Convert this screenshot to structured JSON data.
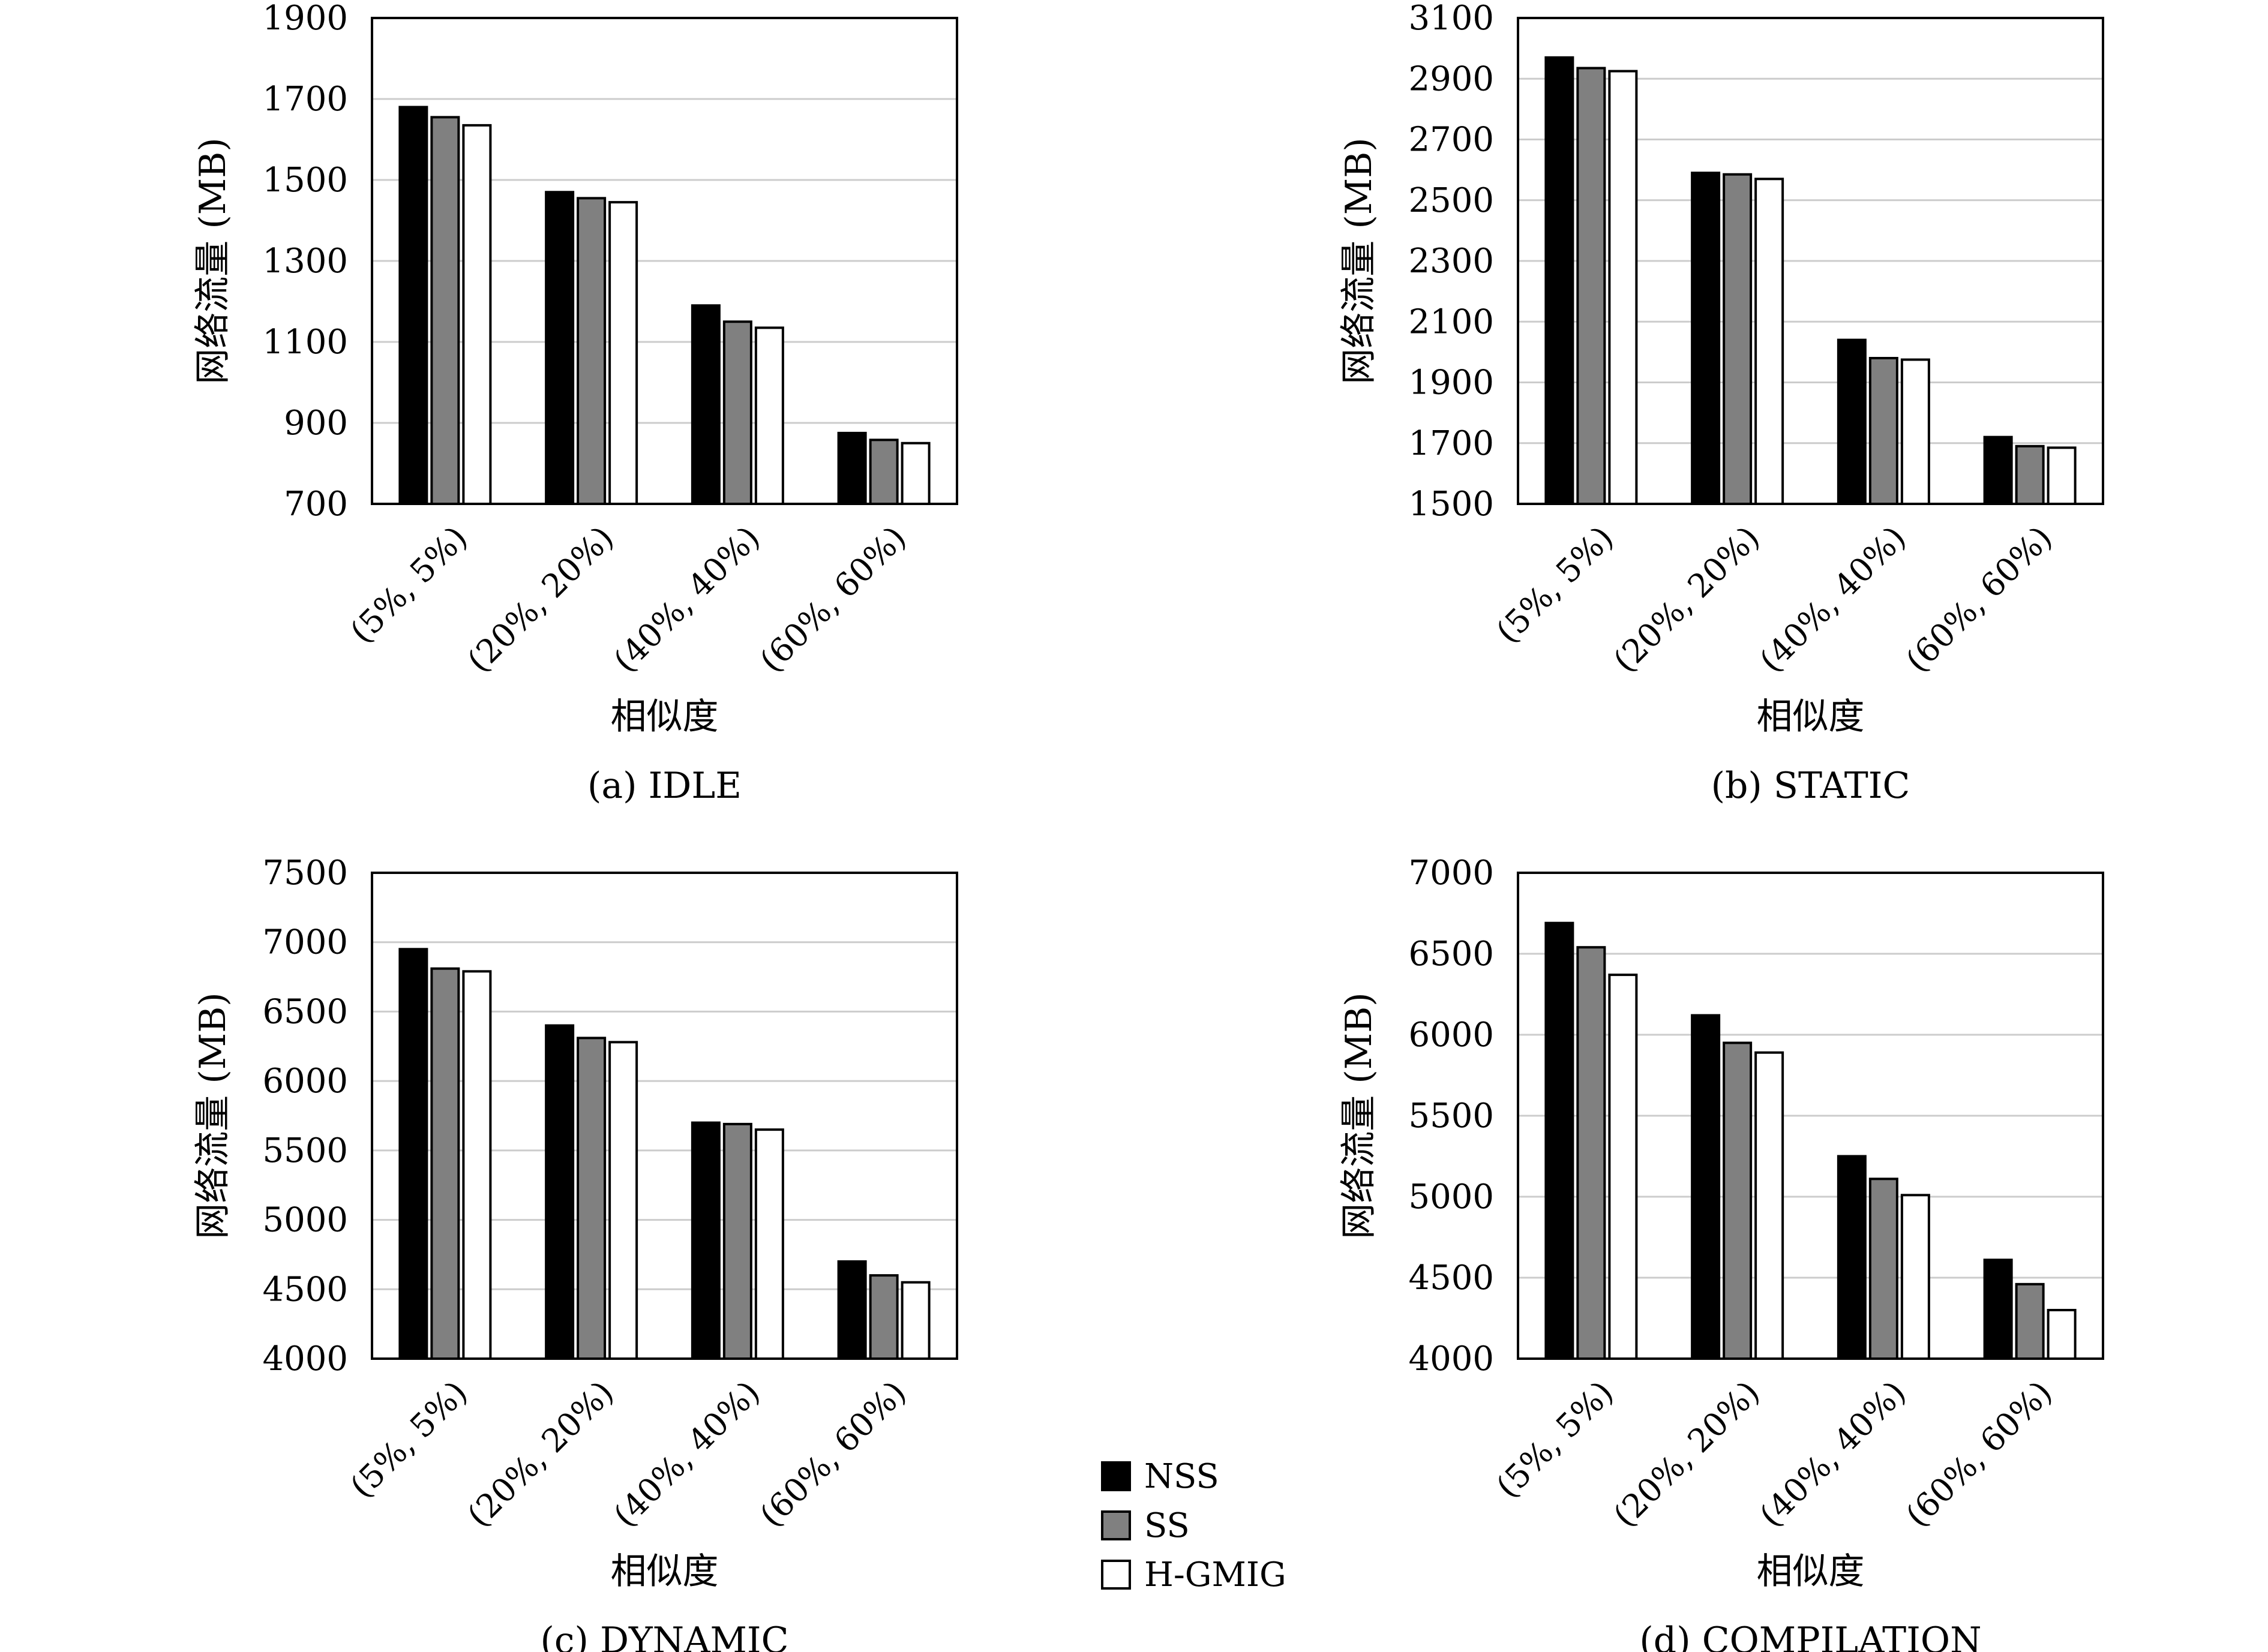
{
  "legend": {
    "items": [
      {
        "name": "NSS",
        "color": "#000000"
      },
      {
        "name": "SS",
        "color": "#808080"
      },
      {
        "name": "H-GMIG",
        "color": "#ffffff"
      }
    ]
  },
  "chart_data": [
    {
      "type": "bar",
      "caption": "(a) IDLE",
      "xlabel": "相似度",
      "ylabel": "网络流量 (MB)",
      "categories": [
        "(5%, 5%)",
        "(20%, 20%)",
        "(40%, 40%)",
        "(60%, 60%)"
      ],
      "ylim": [
        700,
        1900
      ],
      "yticks": [
        700,
        900,
        1100,
        1300,
        1500,
        1700,
        1900
      ],
      "grid": true,
      "series": [
        {
          "name": "NSS",
          "values": [
            1680,
            1470,
            1190,
            875
          ]
        },
        {
          "name": "SS",
          "values": [
            1655,
            1455,
            1150,
            858
          ]
        },
        {
          "name": "H-GMIG",
          "values": [
            1635,
            1445,
            1135,
            850
          ]
        }
      ]
    },
    {
      "type": "bar",
      "caption": "(b) STATIC",
      "xlabel": "相似度",
      "ylabel": "网络流量 (MB)",
      "categories": [
        "(5%, 5%)",
        "(20%, 20%)",
        "(40%, 40%)",
        "(60%, 60%)"
      ],
      "ylim": [
        1500,
        3100
      ],
      "yticks": [
        1500,
        1700,
        1900,
        2100,
        2300,
        2500,
        2700,
        2900,
        3100
      ],
      "grid": true,
      "series": [
        {
          "name": "NSS",
          "values": [
            2970,
            2590,
            2040,
            1720
          ]
        },
        {
          "name": "SS",
          "values": [
            2935,
            2585,
            1980,
            1690
          ]
        },
        {
          "name": "H-GMIG",
          "values": [
            2925,
            2570,
            1975,
            1685
          ]
        }
      ]
    },
    {
      "type": "bar",
      "caption": "(c) DYNAMIC",
      "xlabel": "相似度",
      "ylabel": "网络流量 (MB)",
      "categories": [
        "(5%, 5%)",
        "(20%, 20%)",
        "(40%, 40%)",
        "(60%, 60%)"
      ],
      "ylim": [
        4000,
        7500
      ],
      "yticks": [
        4000,
        4500,
        5000,
        5500,
        6000,
        6500,
        7000,
        7500
      ],
      "grid": true,
      "series": [
        {
          "name": "NSS",
          "values": [
            6950,
            6400,
            5700,
            4700
          ]
        },
        {
          "name": "SS",
          "values": [
            6810,
            6310,
            5690,
            4600
          ]
        },
        {
          "name": "H-GMIG",
          "values": [
            6790,
            6280,
            5650,
            4550
          ]
        }
      ]
    },
    {
      "type": "bar",
      "caption": "(d) COMPILATION",
      "xlabel": "相似度",
      "ylabel": "网络流量 (MB)",
      "categories": [
        "(5%, 5%)",
        "(20%, 20%)",
        "(40%, 40%)",
        "(60%, 60%)"
      ],
      "ylim": [
        4000,
        7000
      ],
      "yticks": [
        4000,
        4500,
        5000,
        5500,
        6000,
        6500,
        7000
      ],
      "grid": true,
      "series": [
        {
          "name": "NSS",
          "values": [
            6690,
            6120,
            5250,
            4610
          ]
        },
        {
          "name": "SS",
          "values": [
            6540,
            5950,
            5110,
            4460
          ]
        },
        {
          "name": "H-GMIG",
          "values": [
            6370,
            5890,
            5010,
            4300
          ]
        }
      ]
    }
  ]
}
